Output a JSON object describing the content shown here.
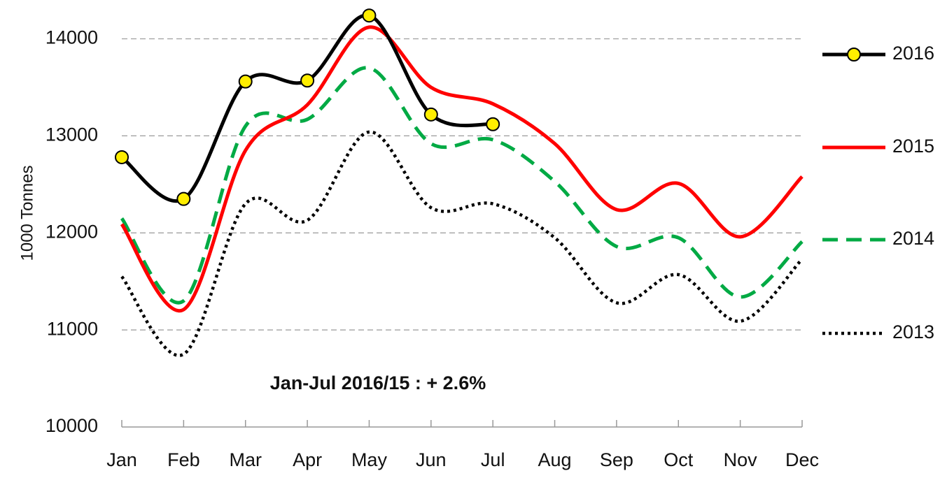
{
  "chart_data": {
    "type": "line",
    "y_label": "1000 Tonnes",
    "annotation": "Jan-Jul 2016/15 :  + 2.6%",
    "categories": [
      "Jan",
      "Feb",
      "Mar",
      "Apr",
      "May",
      "Jun",
      "Jul",
      "Aug",
      "Sep",
      "Oct",
      "Nov",
      "Dec"
    ],
    "series": [
      {
        "name": "2016",
        "color": "#000000",
        "line_style": "solid",
        "marker": true,
        "marker_color": "#ffee00",
        "values": [
          12780,
          12350,
          13560,
          13570,
          14240,
          13220,
          13120,
          null,
          null,
          null,
          null,
          null
        ]
      },
      {
        "name": "2015",
        "color": "#ff0000",
        "line_style": "solid",
        "marker": false,
        "values": [
          12090,
          11210,
          12850,
          13320,
          14120,
          13500,
          13330,
          12920,
          12240,
          12510,
          11960,
          12580
        ]
      },
      {
        "name": "2014",
        "color": "#00aa44",
        "line_style": "dashed",
        "marker": false,
        "values": [
          12150,
          11300,
          13100,
          13170,
          13700,
          12920,
          12960,
          12530,
          11860,
          11950,
          11340,
          11910
        ]
      },
      {
        "name": "2013",
        "color": "#000000",
        "line_style": "dotted",
        "marker": false,
        "values": [
          11550,
          10750,
          12300,
          12130,
          13040,
          12260,
          12300,
          11950,
          11280,
          11570,
          11090,
          11730
        ]
      }
    ],
    "ylim": [
      10000,
      14400
    ],
    "yticks": [
      10000,
      11000,
      12000,
      13000,
      14000
    ],
    "grid": true,
    "smooth": true,
    "legend": "right"
  }
}
